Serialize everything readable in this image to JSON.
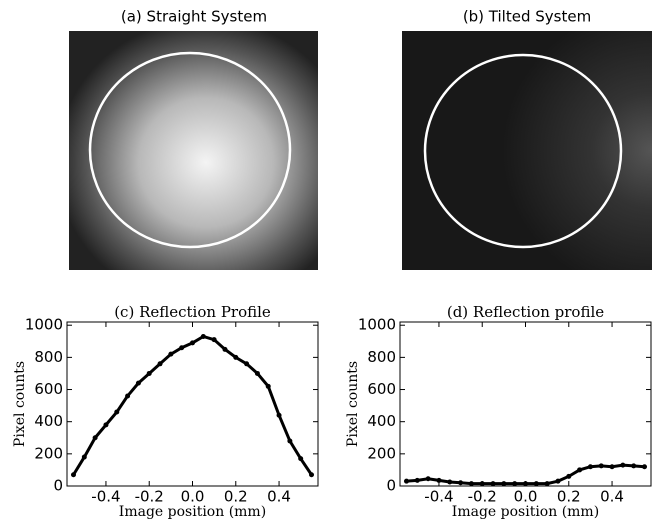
{
  "chart_data": [
    {
      "type": "image",
      "title": "(a) Straight System"
    },
    {
      "type": "image",
      "title": "(b) Tilted System"
    },
    {
      "type": "line",
      "title": "(c) Reflection Profile",
      "xlabel": "Image position (mm)",
      "ylabel": "Pixel counts",
      "color": "#000000",
      "x": [
        -0.55,
        -0.5,
        -0.45,
        -0.4,
        -0.35,
        -0.3,
        -0.25,
        -0.2,
        -0.15,
        -0.1,
        -0.05,
        0,
        0.05,
        0.1,
        0.15,
        0.2,
        0.25,
        0.3,
        0.35,
        0.4,
        0.45,
        0.5,
        0.55
      ],
      "values": [
        70,
        180,
        300,
        380,
        460,
        560,
        640,
        700,
        760,
        820,
        860,
        890,
        930,
        910,
        850,
        800,
        760,
        700,
        620,
        440,
        280,
        170,
        70
      ],
      "xlim": [
        -0.58,
        0.58
      ],
      "ylim": [
        0,
        1020
      ],
      "xticks": [
        -0.4,
        -0.2,
        {
          "value": 0,
          "label": "0.0"
        },
        0.2,
        0.4
      ],
      "yticks": [
        0,
        200,
        400,
        600,
        800,
        1000
      ]
    },
    {
      "type": "line",
      "title": "(d) Reflection profile",
      "xlabel": "Image position (mm)",
      "ylabel": "Pixel counts",
      "color": "#000000",
      "x": [
        -0.55,
        -0.5,
        -0.45,
        -0.4,
        -0.35,
        -0.3,
        -0.25,
        -0.2,
        -0.15,
        -0.1,
        -0.05,
        0,
        0.05,
        0.1,
        0.15,
        0.2,
        0.25,
        0.3,
        0.35,
        0.4,
        0.45,
        0.5,
        0.55
      ],
      "values": [
        30,
        35,
        45,
        35,
        25,
        20,
        15,
        15,
        15,
        15,
        15,
        15,
        15,
        15,
        30,
        60,
        100,
        120,
        125,
        120,
        130,
        125,
        120
      ],
      "xlim": [
        -0.58,
        0.58
      ],
      "ylim": [
        0,
        1020
      ],
      "xticks": [
        -0.4,
        -0.2,
        {
          "value": 0,
          "label": "0.0"
        },
        0.2,
        0.4
      ],
      "yticks": [
        0,
        200,
        400,
        600,
        800,
        1000
      ]
    }
  ]
}
